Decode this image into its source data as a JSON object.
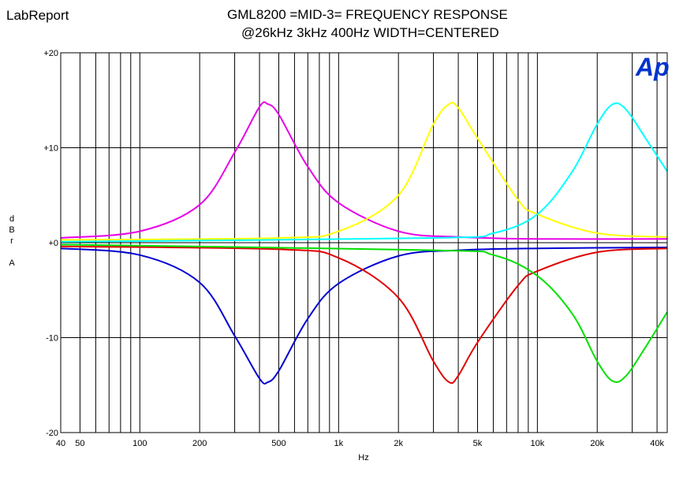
{
  "app_name": "LabReport",
  "title_line1": "GML8200 =MID-3= FREQUENCY RESPONSE",
  "title_line2": "@26kHz 3kHz 400Hz WIDTH=CENTERED",
  "logo_text": "Ap",
  "chart_data": {
    "type": "line",
    "title": "GML8200 =MID-3= FREQUENCY RESPONSE @26kHz 3kHz 400Hz WIDTH=CENTERED",
    "xlabel": "Hz",
    "ylabel_chars": [
      "d",
      "B",
      "r",
      "",
      "A"
    ],
    "x_scale": "log",
    "xlim": [
      40,
      45000
    ],
    "ylim": [
      -20,
      20
    ],
    "grid": true,
    "x_ticks": [
      {
        "value": 40,
        "label": "40"
      },
      {
        "value": 50,
        "label": "50"
      },
      {
        "value": 100,
        "label": "100"
      },
      {
        "value": 200,
        "label": "200"
      },
      {
        "value": 500,
        "label": "500"
      },
      {
        "value": 1000,
        "label": "1k"
      },
      {
        "value": 2000,
        "label": "2k"
      },
      {
        "value": 5000,
        "label": "5k"
      },
      {
        "value": 10000,
        "label": "10k"
      },
      {
        "value": 20000,
        "label": "20k"
      },
      {
        "value": 40000,
        "label": "40k"
      }
    ],
    "y_ticks": [
      {
        "value": 20,
        "label": "+20"
      },
      {
        "value": 10,
        "label": "+10"
      },
      {
        "value": 0,
        "label": "+0"
      },
      {
        "value": -10,
        "label": "-10"
      },
      {
        "value": -20,
        "label": "-20"
      }
    ],
    "series": [
      {
        "color": "#e800e8",
        "points": [
          [
            40,
            0.5
          ],
          [
            100,
            1.2
          ],
          [
            200,
            4.0
          ],
          [
            300,
            9.5
          ],
          [
            400,
            14.3
          ],
          [
            440,
            14.6
          ],
          [
            500,
            13.5
          ],
          [
            700,
            8.0
          ],
          [
            1000,
            4.2
          ],
          [
            2000,
            1.2
          ],
          [
            4000,
            0.6
          ],
          [
            10000,
            0.4
          ],
          [
            45000,
            0.4
          ]
        ]
      },
      {
        "color": "#0000d0",
        "points": [
          [
            40,
            -0.6
          ],
          [
            100,
            -1.3
          ],
          [
            200,
            -4.2
          ],
          [
            300,
            -9.8
          ],
          [
            400,
            -14.3
          ],
          [
            440,
            -14.7
          ],
          [
            500,
            -13.5
          ],
          [
            700,
            -8.0
          ],
          [
            1000,
            -4.3
          ],
          [
            2000,
            -1.4
          ],
          [
            4000,
            -0.8
          ],
          [
            10000,
            -0.6
          ],
          [
            45000,
            -0.5
          ]
        ]
      },
      {
        "color": "#ffff00",
        "points": [
          [
            40,
            0.3
          ],
          [
            500,
            0.5
          ],
          [
            1000,
            1.2
          ],
          [
            2000,
            5.0
          ],
          [
            3000,
            12.5
          ],
          [
            3600,
            14.6
          ],
          [
            4000,
            14.2
          ],
          [
            5000,
            11.0
          ],
          [
            8000,
            4.5
          ],
          [
            10000,
            3.0
          ],
          [
            20000,
            1.0
          ],
          [
            45000,
            0.6
          ]
        ]
      },
      {
        "color": "#e00000",
        "points": [
          [
            40,
            -0.4
          ],
          [
            500,
            -0.7
          ],
          [
            1000,
            -1.6
          ],
          [
            2000,
            -5.8
          ],
          [
            3000,
            -12.5
          ],
          [
            3600,
            -14.7
          ],
          [
            4000,
            -14.0
          ],
          [
            5000,
            -10.5
          ],
          [
            8000,
            -4.5
          ],
          [
            10000,
            -3.0
          ],
          [
            20000,
            -1.0
          ],
          [
            45000,
            -0.6
          ]
        ]
      },
      {
        "color": "#00ffff",
        "points": [
          [
            40,
            0.1
          ],
          [
            3000,
            0.5
          ],
          [
            6000,
            1.0
          ],
          [
            10000,
            3.0
          ],
          [
            15000,
            7.5
          ],
          [
            20000,
            12.5
          ],
          [
            24000,
            14.6
          ],
          [
            28000,
            14.0
          ],
          [
            35000,
            11.0
          ],
          [
            45000,
            7.5
          ]
        ]
      },
      {
        "color": "#00e000",
        "points": [
          [
            40,
            -0.2
          ],
          [
            3000,
            -0.8
          ],
          [
            6000,
            -1.3
          ],
          [
            10000,
            -3.5
          ],
          [
            15000,
            -7.5
          ],
          [
            20000,
            -12.5
          ],
          [
            24000,
            -14.6
          ],
          [
            28000,
            -14.0
          ],
          [
            35000,
            -11.0
          ],
          [
            45000,
            -7.3
          ]
        ]
      }
    ]
  }
}
